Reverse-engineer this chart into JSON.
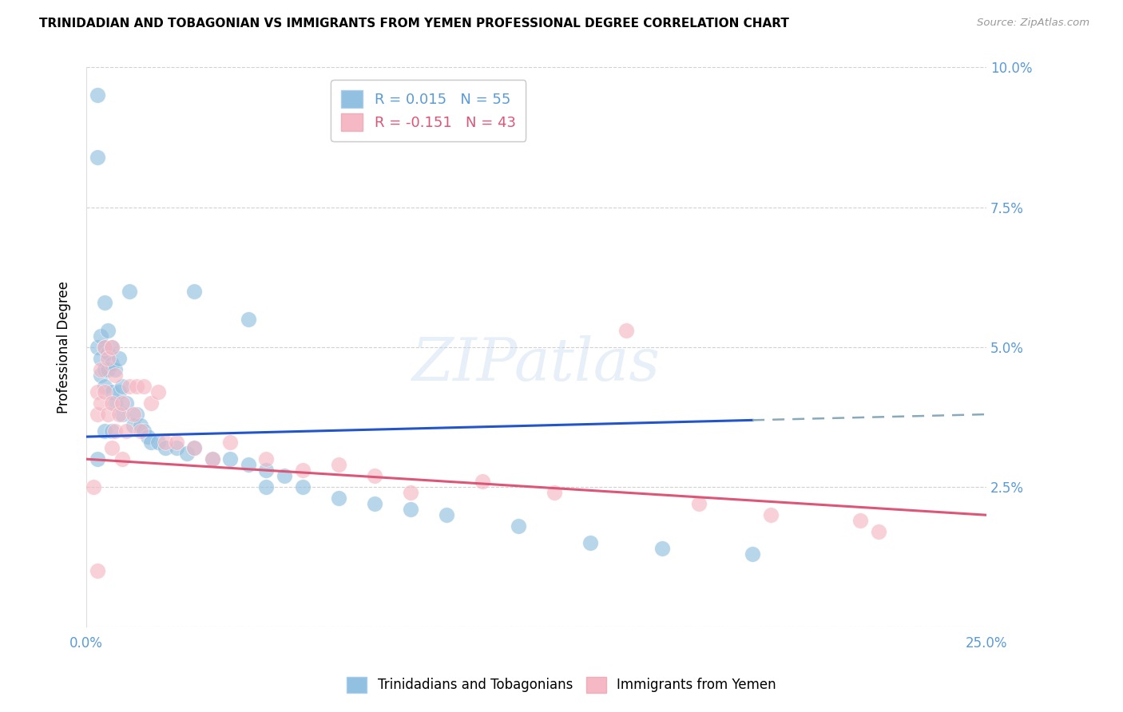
{
  "title": "TRINIDADIAN AND TOBAGONIAN VS IMMIGRANTS FROM YEMEN PROFESSIONAL DEGREE CORRELATION CHART",
  "source": "Source: ZipAtlas.com",
  "ylabel": "Professional Degree",
  "xlim": [
    0.0,
    0.25
  ],
  "ylim": [
    0.0,
    0.1
  ],
  "yticks": [
    0.0,
    0.025,
    0.05,
    0.075,
    0.1
  ],
  "yticklabels_right": [
    "",
    "2.5%",
    "5.0%",
    "7.5%",
    "10.0%"
  ],
  "xtick_vals": [
    0.0,
    0.05,
    0.1,
    0.15,
    0.2,
    0.25
  ],
  "xticklabels": [
    "0.0%",
    "",
    "",
    "",
    "",
    "25.0%"
  ],
  "legend1_label": "R = 0.015   N = 55",
  "legend2_label": "R = -0.151   N = 43",
  "legend_label1_bottom": "Trinidadians and Tobagonians",
  "legend_label2_bottom": "Immigrants from Yemen",
  "blue_color": "#92c0e0",
  "pink_color": "#f5b8c4",
  "blue_line_color": "#2255cc",
  "pink_line_color": "#dd5577",
  "blue_line_start_y": 0.034,
  "blue_line_end_y": 0.038,
  "pink_line_start_y": 0.03,
  "pink_line_end_y": 0.02,
  "blue_scatter_x": [
    0.003,
    0.003,
    0.004,
    0.004,
    0.004,
    0.005,
    0.005,
    0.005,
    0.005,
    0.006,
    0.006,
    0.006,
    0.007,
    0.007,
    0.007,
    0.008,
    0.008,
    0.009,
    0.009,
    0.01,
    0.01,
    0.011,
    0.012,
    0.013,
    0.014,
    0.015,
    0.016,
    0.017,
    0.018,
    0.02,
    0.022,
    0.025,
    0.028,
    0.03,
    0.035,
    0.04,
    0.045,
    0.05,
    0.055,
    0.06,
    0.07,
    0.08,
    0.09,
    0.1,
    0.12,
    0.14,
    0.16,
    0.185,
    0.03,
    0.045,
    0.003,
    0.005,
    0.007,
    0.003,
    0.05
  ],
  "blue_scatter_y": [
    0.095,
    0.05,
    0.052,
    0.048,
    0.045,
    0.058,
    0.05,
    0.046,
    0.043,
    0.053,
    0.049,
    0.046,
    0.05,
    0.047,
    0.042,
    0.046,
    0.04,
    0.048,
    0.042,
    0.043,
    0.038,
    0.04,
    0.06,
    0.036,
    0.038,
    0.036,
    0.035,
    0.034,
    0.033,
    0.033,
    0.032,
    0.032,
    0.031,
    0.032,
    0.03,
    0.03,
    0.029,
    0.028,
    0.027,
    0.025,
    0.023,
    0.022,
    0.021,
    0.02,
    0.018,
    0.015,
    0.014,
    0.013,
    0.06,
    0.055,
    0.084,
    0.035,
    0.035,
    0.03,
    0.025
  ],
  "pink_scatter_x": [
    0.002,
    0.003,
    0.003,
    0.004,
    0.004,
    0.005,
    0.005,
    0.006,
    0.006,
    0.007,
    0.007,
    0.008,
    0.008,
    0.009,
    0.01,
    0.011,
    0.012,
    0.013,
    0.014,
    0.015,
    0.016,
    0.018,
    0.02,
    0.022,
    0.025,
    0.03,
    0.035,
    0.04,
    0.05,
    0.06,
    0.07,
    0.08,
    0.09,
    0.11,
    0.13,
    0.15,
    0.17,
    0.19,
    0.215,
    0.22,
    0.003,
    0.007,
    0.01
  ],
  "pink_scatter_y": [
    0.025,
    0.042,
    0.038,
    0.046,
    0.04,
    0.05,
    0.042,
    0.048,
    0.038,
    0.05,
    0.04,
    0.045,
    0.035,
    0.038,
    0.04,
    0.035,
    0.043,
    0.038,
    0.043,
    0.035,
    0.043,
    0.04,
    0.042,
    0.033,
    0.033,
    0.032,
    0.03,
    0.033,
    0.03,
    0.028,
    0.029,
    0.027,
    0.024,
    0.026,
    0.024,
    0.053,
    0.022,
    0.02,
    0.019,
    0.017,
    0.01,
    0.032,
    0.03
  ]
}
